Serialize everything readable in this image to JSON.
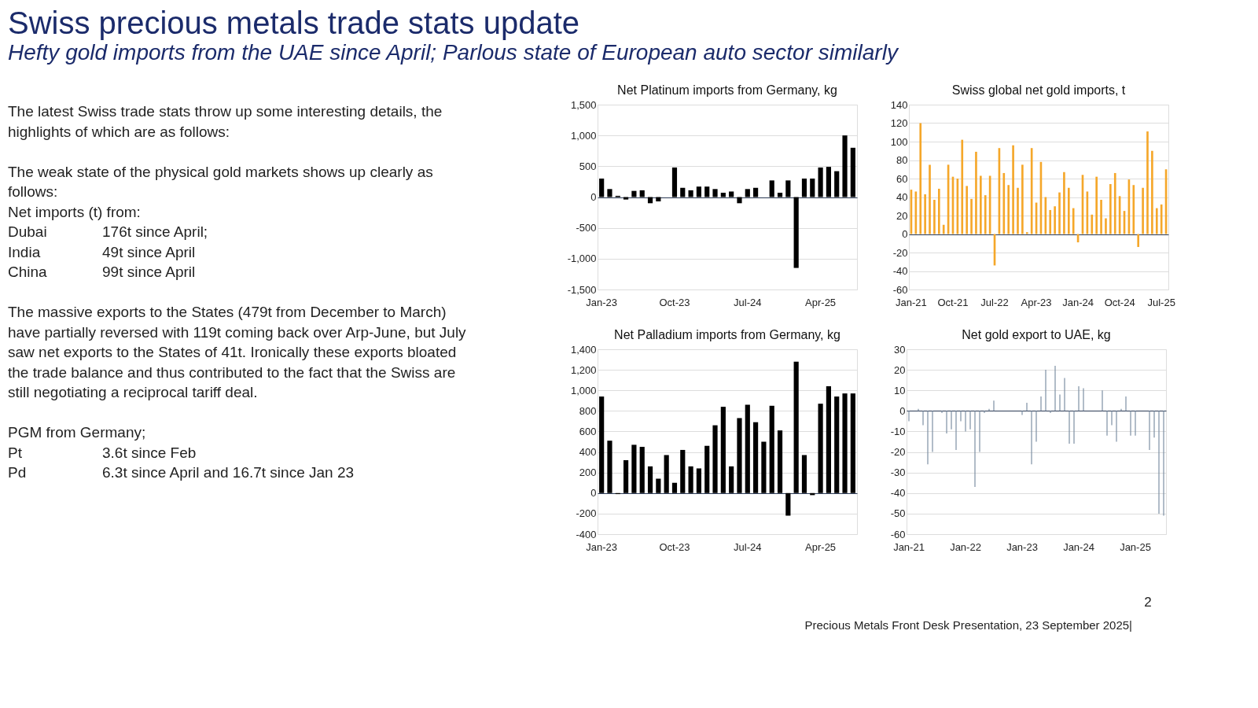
{
  "chart_data": [
    {
      "type": "other",
      "title": "Swiss precious metals trade stats update",
      "subtitle": "Hefty gold imports from the UAE since April;  Parlous state of European auto sector similarly",
      "annotations": [
        "The latest Swiss trade stats throw up some interesting details, the\nhighlights of which are as follows:",
        "The weak state of the physical gold markets shows up clearly as\nfollows:\nNet imports (t)  from:\nDubai\t176t since April;\nIndia\t 49t since April\nChina\t99t since April",
        "The massive exports to the States (479t from December to March)\nhave partially reversed with 119t coming back over Arp-June, but July\nsaw net exports to the States of 41t. Ironically these exports bloated\nthe trade balance and thus contributed to the fact that the Swiss are\nstill negotiating a reciprocal tariff deal.",
        "PGM from Germany;\nPt\t3.6t since Feb\nPd\t6.3t since April and 16.7t since Jan 23",
        "2",
        "Precious Metals Front Desk Presentation, 23 September 2025|"
      ]
    },
    {
      "type": "bar",
      "title": "Net Platinum imports from Germany, kg",
      "categories": [
        "Jan-23",
        null,
        null,
        null,
        null,
        null,
        null,
        null,
        null,
        "Oct-23",
        null,
        null,
        null,
        null,
        null,
        null,
        null,
        null,
        "Jul-24",
        null,
        null,
        null,
        null,
        null,
        null,
        null,
        null,
        "Apr-25",
        null,
        null,
        null,
        null
      ],
      "series": [
        {
          "color": "#000000",
          "values": [
            300,
            130,
            20,
            -40,
            100,
            110,
            -100,
            -70,
            null,
            480,
            150,
            110,
            170,
            170,
            130,
            70,
            90,
            -100,
            130,
            150,
            null,
            270,
            70,
            270,
            -1150,
            300,
            300,
            480,
            490,
            420,
            1000,
            800
          ]
        }
      ],
      "ylim": [
        -1500,
        1500
      ],
      "yticks": [
        {
          "value": -1500,
          "label": "-1,500"
        },
        {
          "value": -1000,
          "label": "-1,000"
        },
        -500,
        0,
        500,
        {
          "value": 1000,
          "label": "1,000"
        },
        {
          "value": 1500,
          "label": "1,500"
        }
      ],
      "grid": "y"
    },
    {
      "type": "bar",
      "title": "Swiss global net gold imports, t",
      "categories": [
        "Jan-21",
        null,
        null,
        null,
        null,
        null,
        null,
        null,
        null,
        "Oct-21",
        null,
        null,
        null,
        null,
        null,
        null,
        null,
        null,
        "Jul-22",
        null,
        null,
        null,
        null,
        null,
        null,
        null,
        null,
        "Apr-23",
        null,
        null,
        null,
        null,
        null,
        null,
        null,
        null,
        "Jan-24",
        null,
        null,
        null,
        null,
        null,
        null,
        null,
        null,
        "Oct-24",
        null,
        null,
        null,
        null,
        null,
        null,
        null,
        null,
        "Jul-25",
        null
      ],
      "series": [
        {
          "color": "#f5a72a",
          "values": [
            48,
            46,
            120,
            43,
            75,
            37,
            49,
            10,
            75,
            62,
            60,
            102,
            52,
            38,
            89,
            63,
            42,
            63,
            -34,
            93,
            66,
            53,
            96,
            50,
            75,
            2,
            93,
            34,
            78,
            40,
            26,
            30,
            45,
            67,
            50,
            28,
            -9,
            64,
            46,
            21,
            62,
            37,
            17,
            54,
            66,
            41,
            25,
            59,
            53,
            -14,
            50,
            111,
            90,
            28,
            32,
            70
          ]
        }
      ],
      "ylim": [
        -60,
        140
      ],
      "yticks": [
        -60,
        -40,
        -20,
        0,
        20,
        40,
        60,
        80,
        100,
        120,
        140
      ],
      "grid": "y"
    },
    {
      "type": "bar",
      "title": "Net Palladium imports from Germany, kg",
      "categories": [
        "Jan-23",
        null,
        null,
        null,
        null,
        null,
        null,
        null,
        null,
        "Oct-23",
        null,
        null,
        null,
        null,
        null,
        null,
        null,
        null,
        "Jul-24",
        null,
        null,
        null,
        null,
        null,
        null,
        null,
        null,
        "Apr-25",
        null,
        null,
        null,
        null
      ],
      "series": [
        {
          "color": "#000000",
          "values": [
            940,
            510,
            -10,
            320,
            470,
            450,
            260,
            140,
            370,
            100,
            420,
            260,
            240,
            460,
            660,
            840,
            260,
            730,
            860,
            690,
            500,
            850,
            610,
            -220,
            1280,
            370,
            -20,
            870,
            1040,
            940,
            970,
            970
          ]
        }
      ],
      "ylim": [
        -400,
        1400
      ],
      "yticks": [
        -400,
        -200,
        0,
        200,
        400,
        600,
        800,
        {
          "value": 1000,
          "label": "1,000"
        },
        {
          "value": 1200,
          "label": "1,200"
        },
        {
          "value": 1400,
          "label": "1,400"
        }
      ],
      "grid": "y"
    },
    {
      "type": "bar",
      "title": "Net gold export to UAE, kg",
      "categories": [
        "Jan-21",
        null,
        null,
        null,
        null,
        null,
        null,
        null,
        null,
        null,
        null,
        null,
        "Jan-22",
        null,
        null,
        null,
        null,
        null,
        null,
        null,
        null,
        null,
        null,
        null,
        "Jan-23",
        null,
        null,
        null,
        null,
        null,
        null,
        null,
        null,
        null,
        null,
        null,
        "Jan-24",
        null,
        null,
        null,
        null,
        null,
        null,
        null,
        null,
        null,
        null,
        null,
        "Jan-25",
        null,
        null,
        null,
        null,
        null,
        null
      ],
      "series": [
        {
          "color": "#7d8fa3",
          "values": [
            -5,
            null,
            1,
            -7,
            -26,
            -20,
            null,
            -1,
            -11,
            -9,
            -19,
            -5,
            -10,
            -9,
            -37,
            -20,
            -1,
            1,
            5,
            null,
            null,
            null,
            null,
            null,
            -2,
            4,
            -26,
            -15,
            7,
            20,
            -1,
            22,
            8,
            16,
            -16,
            -16,
            12,
            11,
            null,
            null,
            null,
            10,
            -12,
            -7,
            -15,
            1,
            7,
            -12,
            -12,
            null,
            null,
            -19,
            -13,
            -50,
            -51
          ]
        }
      ],
      "ylim": [
        -60,
        30
      ],
      "yticks": [
        -60,
        -50,
        -40,
        -30,
        -20,
        -10,
        0,
        10,
        20,
        30
      ],
      "grid": "y"
    }
  ]
}
